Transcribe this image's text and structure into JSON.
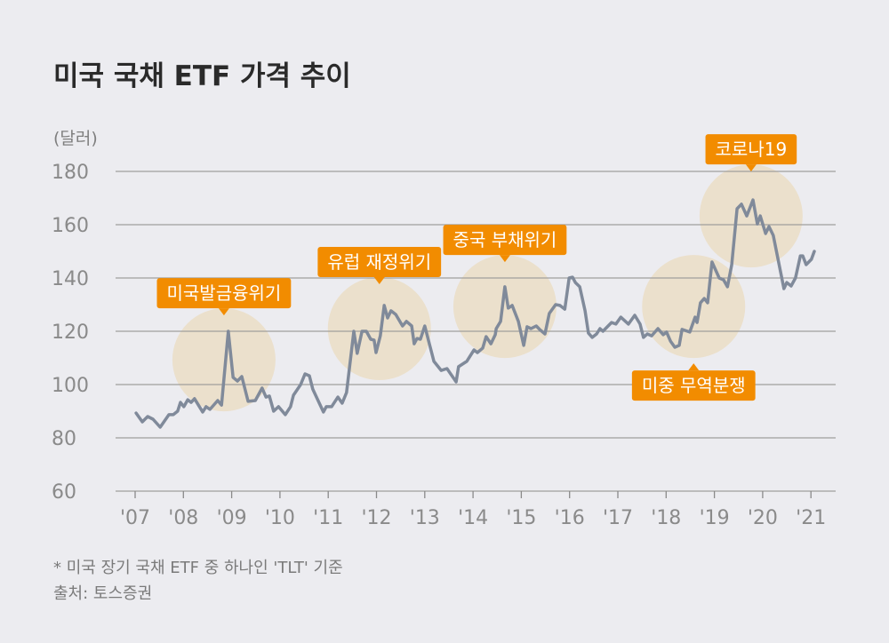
{
  "title": "미국 국채 ETF 가격 추이",
  "footnote": "*  미국 장기 국채 ETF 중 하나인 'TLT' 기준",
  "source": "출처: 토스증권",
  "colors": {
    "background": "#ececf0",
    "line": "#808a9a",
    "highlight": "#ebe0cc",
    "label": "#f28c00",
    "grid": "#a09e9c"
  },
  "chart_data": {
    "type": "line",
    "title": "미국 국채 ETF 가격 추이",
    "ylabel": "(달러)",
    "xlabel": "",
    "ylim": [
      60,
      180
    ],
    "yticks": [
      60,
      80,
      100,
      120,
      140,
      160,
      180
    ],
    "xticks": [
      {
        "year": 2007,
        "label": "'07"
      },
      {
        "year": 2008,
        "label": "'08"
      },
      {
        "year": 2009,
        "label": "'09"
      },
      {
        "year": 2010,
        "label": "'10"
      },
      {
        "year": 2011,
        "label": "'11"
      },
      {
        "year": 2012,
        "label": "'12"
      },
      {
        "year": 2013,
        "label": "'13"
      },
      {
        "year": 2014,
        "label": "'14"
      },
      {
        "year": 2015,
        "label": "'15"
      },
      {
        "year": 2016,
        "label": "'16"
      },
      {
        "year": 2017,
        "label": "'17"
      },
      {
        "year": 2018,
        "label": "'18"
      },
      {
        "year": 2019,
        "label": "'19"
      },
      {
        "year": 2020,
        "label": "'20"
      },
      {
        "year": 2021,
        "label": "'21"
      }
    ],
    "grid": "horizontal",
    "series": [
      {
        "x": [
          2007.02,
          2007.15,
          2007.26,
          2007.37,
          2007.52,
          2007.7,
          2007.79,
          2007.88,
          2007.94,
          2008.01,
          2008.09,
          2008.16,
          2008.23,
          2008.4,
          2008.47,
          2008.55,
          2008.71,
          2008.79,
          2008.93,
          2009.03,
          2009.12,
          2009.21,
          2009.34,
          2009.49,
          2009.63,
          2009.71,
          2009.78,
          2009.87,
          2009.97,
          2010.11,
          2010.22,
          2010.28,
          2010.43,
          2010.52,
          2010.61,
          2010.68,
          2010.9,
          2010.96,
          2011.07,
          2011.2,
          2011.29,
          2011.38,
          2011.53,
          2011.6,
          2011.7,
          2011.79,
          2011.88,
          2011.95,
          2011.99,
          2012.08,
          2012.16,
          2012.23,
          2012.3,
          2012.4,
          2012.54,
          2012.62,
          2012.73,
          2012.78,
          2012.84,
          2012.91,
          2013.0,
          2013.1,
          2013.19,
          2013.34,
          2013.46,
          2013.65,
          2013.7,
          2013.87,
          2014.02,
          2014.09,
          2014.2,
          2014.27,
          2014.37,
          2014.46,
          2014.48,
          2014.57,
          2014.66,
          2014.73,
          2014.81,
          2014.94,
          2015.05,
          2015.12,
          2015.2,
          2015.31,
          2015.38,
          2015.49,
          2015.58,
          2015.71,
          2015.8,
          2015.9,
          2015.99,
          2016.06,
          2016.12,
          2016.21,
          2016.32,
          2016.39,
          2016.47,
          2016.56,
          2016.63,
          2016.69,
          2016.87,
          2016.96,
          2017.06,
          2017.22,
          2017.35,
          2017.46,
          2017.53,
          2017.61,
          2017.7,
          2017.83,
          2017.94,
          2018.01,
          2018.09,
          2018.18,
          2018.27,
          2018.33,
          2018.49,
          2018.6,
          2018.64,
          2018.71,
          2018.79,
          2018.86,
          2018.95,
          2019.1,
          2019.19,
          2019.27,
          2019.36,
          2019.47,
          2019.56,
          2019.67,
          2019.8,
          2019.89,
          2019.95,
          2020.06,
          2020.13,
          2020.22,
          2020.44,
          2020.5,
          2020.59,
          2020.68,
          2020.78,
          2020.83,
          2020.9,
          2021.01,
          2021.07
        ],
        "y": [
          89.3,
          86,
          88,
          87,
          84,
          88.7,
          88.7,
          90,
          93.3,
          91.7,
          94.3,
          93.3,
          94.7,
          89.7,
          91.7,
          90.7,
          94,
          92.3,
          120,
          102.7,
          101.3,
          103,
          93.7,
          94,
          98.7,
          95.3,
          95.7,
          90,
          91.7,
          88.7,
          91.7,
          96,
          100,
          104,
          103.3,
          98.3,
          89.7,
          91.7,
          91.7,
          95.3,
          93,
          97,
          120,
          111.7,
          120,
          120,
          117,
          116.7,
          112,
          118.3,
          129.7,
          125,
          127.7,
          126.3,
          122,
          123.7,
          122,
          115.3,
          117.3,
          117,
          122,
          115,
          108.7,
          105.3,
          106,
          101,
          106.7,
          108.7,
          113,
          112,
          113.7,
          118,
          115.3,
          118.7,
          121,
          123.7,
          136.7,
          128.7,
          129.7,
          123.7,
          114.7,
          121.7,
          121,
          122,
          120.7,
          119,
          126.7,
          130,
          129.7,
          128.3,
          140,
          140.3,
          138.3,
          136.7,
          127.7,
          119.3,
          117.7,
          119,
          121,
          120,
          123.3,
          122.7,
          125.3,
          122.7,
          126,
          122.7,
          117.7,
          119,
          118.3,
          121,
          118.7,
          119.7,
          116.3,
          114,
          114.7,
          120.7,
          119.7,
          125.3,
          123.3,
          130.7,
          132.3,
          130.7,
          146,
          140,
          139.3,
          136.7,
          145,
          166,
          167.7,
          163.3,
          169.3,
          160.3,
          163.3,
          156.7,
          159.3,
          156,
          136,
          138.3,
          137,
          140,
          148.3,
          148.3,
          145,
          147,
          150
        ]
      }
    ],
    "annotations": [
      {
        "label": "미국발금융위기",
        "x": 2008.84,
        "y": 109.3,
        "placement": "above"
      },
      {
        "label": "유럽 재정위기",
        "x": 2012.06,
        "y": 121,
        "placement": "above"
      },
      {
        "label": "중국 부채위기",
        "x": 2014.66,
        "y": 129.3,
        "placement": "above"
      },
      {
        "label": "미중 무역분쟁",
        "x": 2018.57,
        "y": 129.3,
        "placement": "below"
      },
      {
        "label": "코로나19",
        "x": 2019.76,
        "y": 163.3,
        "placement": "above"
      }
    ]
  }
}
